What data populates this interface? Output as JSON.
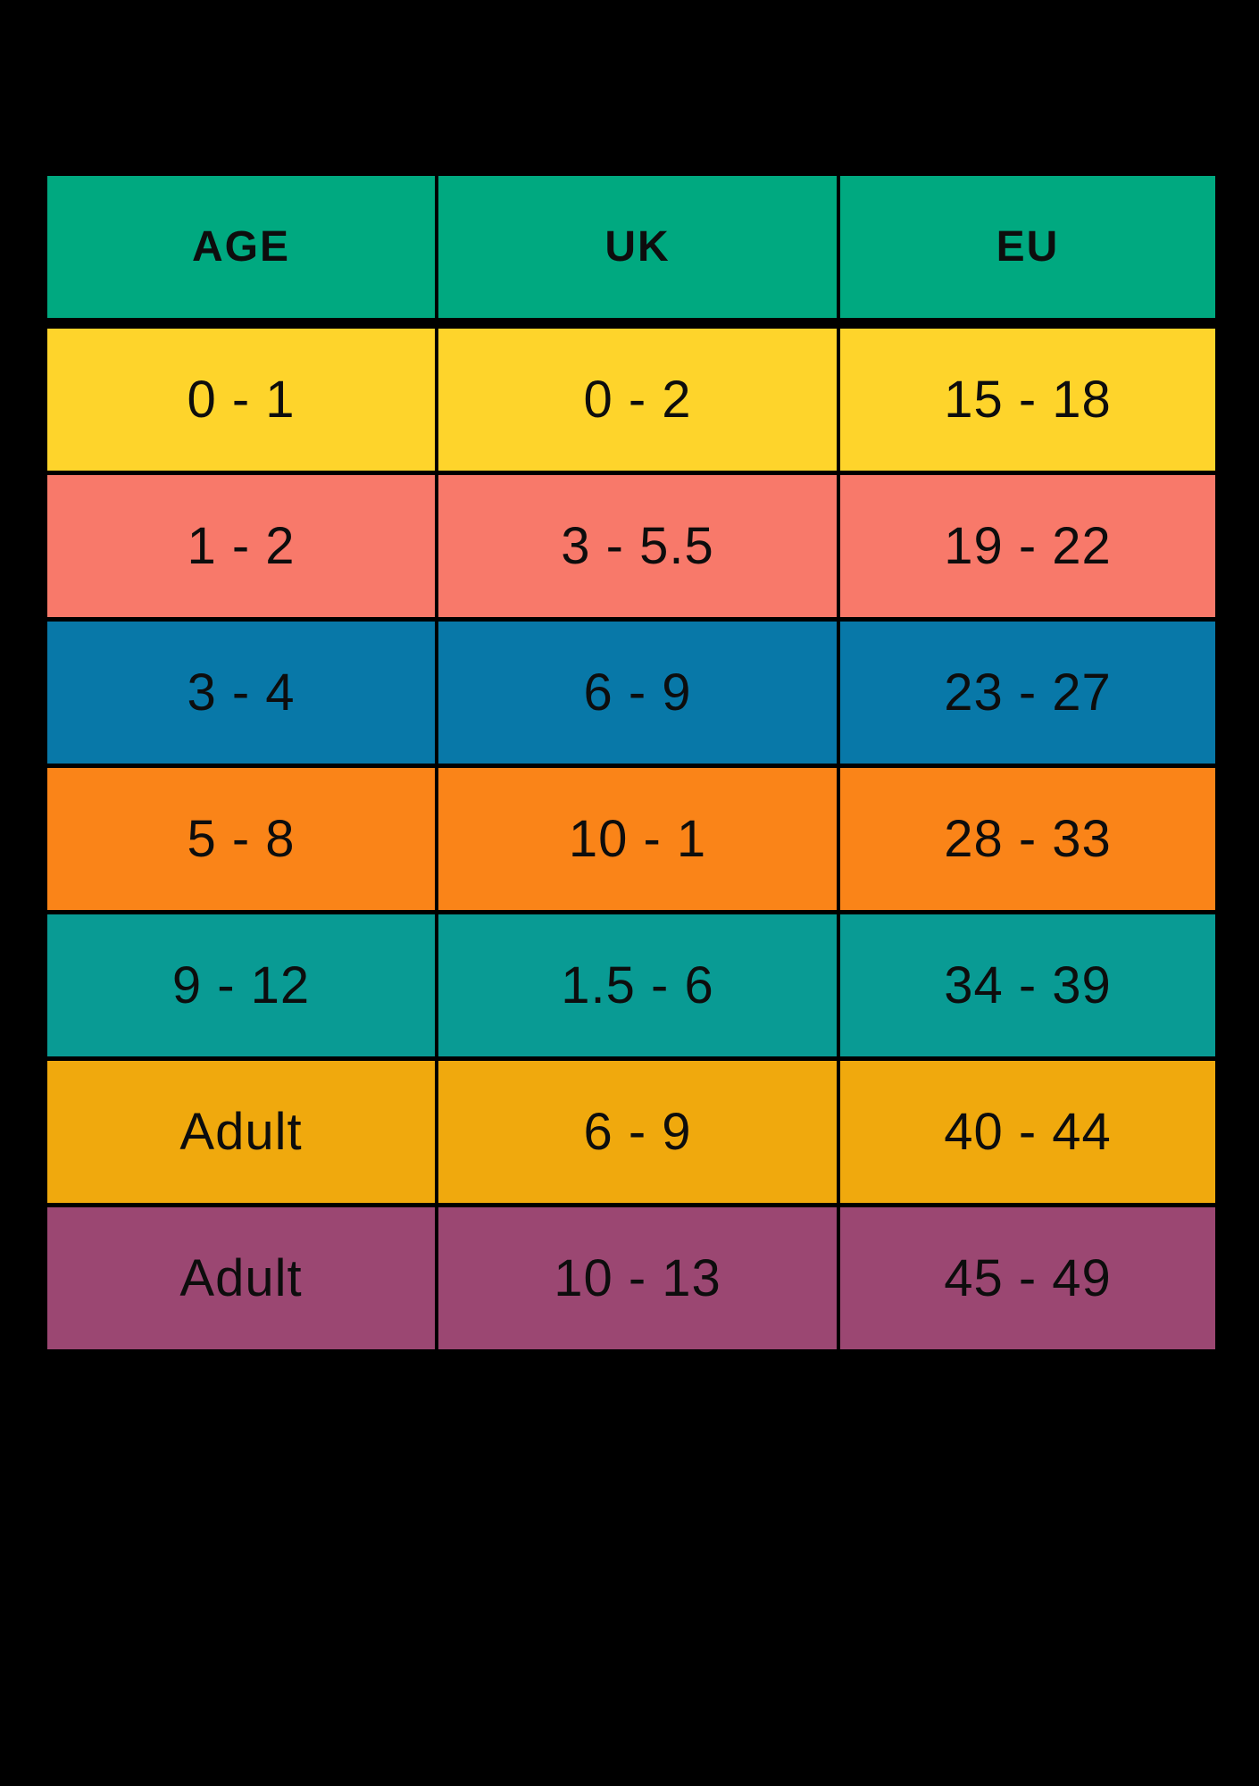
{
  "page": {
    "background": "#000000",
    "text_color": "#0d0d0d"
  },
  "chart_data": {
    "type": "table",
    "title": "",
    "columns": [
      "AGE",
      "UK",
      "EU"
    ],
    "rows": [
      [
        "0 - 1",
        "0 - 2",
        "15 - 18"
      ],
      [
        "1 - 2",
        "3 - 5.5",
        "19 - 22"
      ],
      [
        "3 - 4",
        "6 - 9",
        "23 - 27"
      ],
      [
        "5 - 8",
        "10 - 1",
        "28 - 33"
      ],
      [
        "9 - 12",
        "1.5 - 6",
        "34 - 39"
      ],
      [
        "Adult",
        "6 - 9",
        "40 - 44"
      ],
      [
        "Adult",
        "10 - 13",
        "45 - 49"
      ]
    ],
    "header_color": "#00A980",
    "row_colors": [
      "#FED42B",
      "#F8796A",
      "#0878A8",
      "#FA8418",
      "#099B94",
      "#F0A90D",
      "#9B4772"
    ],
    "grid_color": "#000000",
    "layout": "3-column conversion table, black gridlines, centered text"
  }
}
